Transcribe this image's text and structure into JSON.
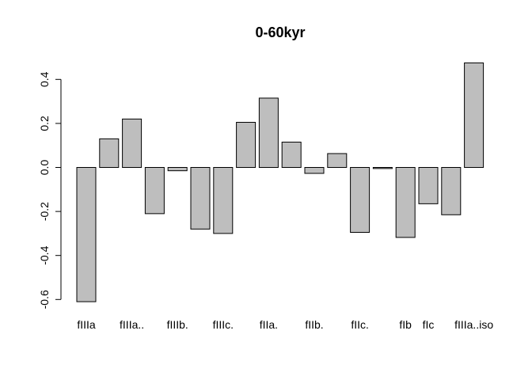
{
  "chart_data": {
    "type": "bar",
    "title": "0-60kyr",
    "xlabel": "",
    "ylabel": "",
    "ylim": [
      -0.62,
      0.48
    ],
    "yticks": [
      -0.6,
      -0.4,
      -0.2,
      0.0,
      0.2,
      0.4
    ],
    "ytick_labels": [
      "-0.6",
      "-0.4",
      "-0.2",
      "0.0",
      "0.2",
      "0.4"
    ],
    "grid": false,
    "bar_color": "#BEBEBE",
    "bar_edge_color": "#000000",
    "values": [
      -0.61,
      0.13,
      0.22,
      -0.21,
      -0.015,
      -0.28,
      -0.3,
      0.205,
      0.315,
      0.115,
      -0.027,
      0.063,
      -0.295,
      -0.005,
      -0.318,
      -0.165,
      -0.215,
      0.475
    ],
    "category_labels": [
      {
        "bar_index": 0,
        "label": "fIIIa"
      },
      {
        "bar_index": 2,
        "label": "fIIIa.."
      },
      {
        "bar_index": 4,
        "label": "fIIIb."
      },
      {
        "bar_index": 6,
        "label": "fIIIc."
      },
      {
        "bar_index": 8,
        "label": "fIIa."
      },
      {
        "bar_index": 10,
        "label": "fIIb."
      },
      {
        "bar_index": 12,
        "label": "fIIc."
      },
      {
        "bar_index": 14,
        "label": "fIb"
      },
      {
        "bar_index": 15,
        "label": "fIc"
      },
      {
        "bar_index": 17,
        "label": "fIIIa..iso"
      }
    ]
  }
}
